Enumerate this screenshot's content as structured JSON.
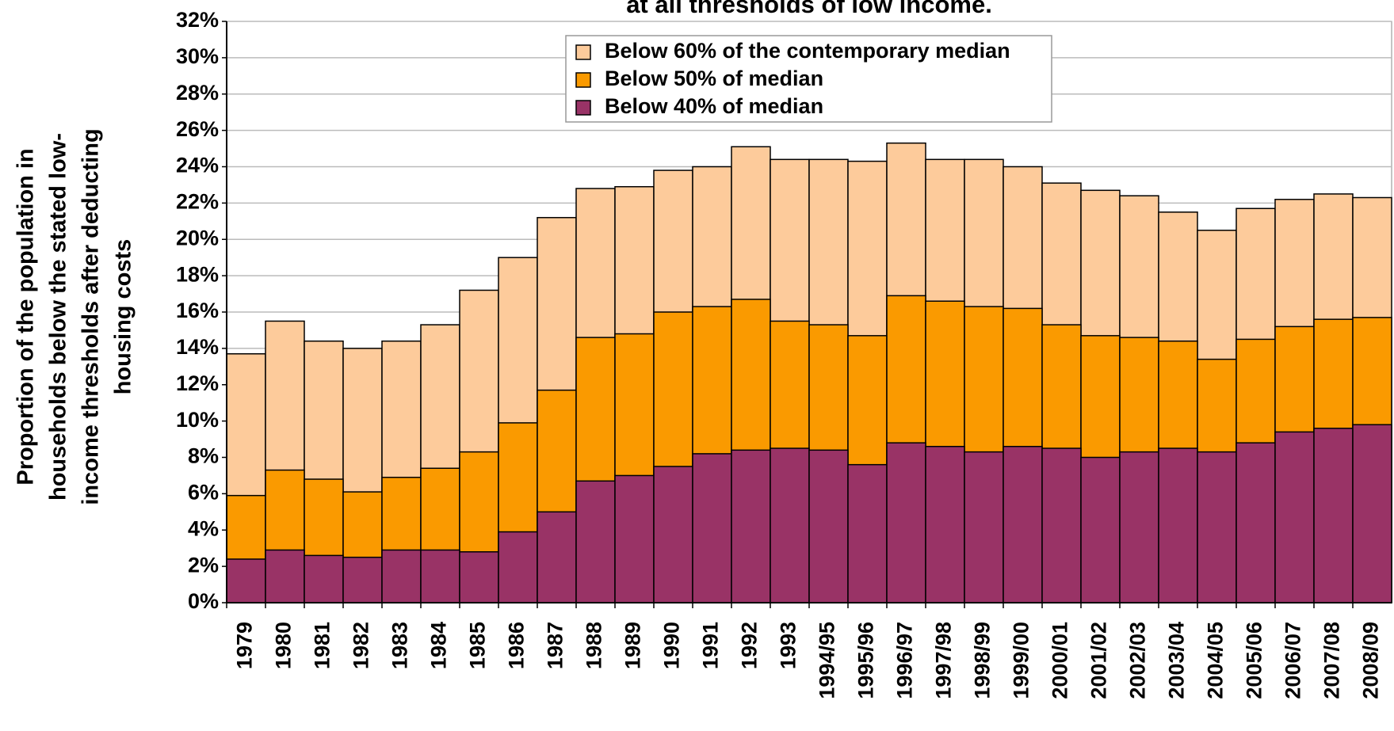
{
  "chart_data": {
    "type": "bar",
    "overlap": true,
    "title": "at all thresholds of low income.",
    "ylabel": [
      "Proportion of the population in",
      "households below the stated low-",
      "income thresholds after deducting",
      "housing costs"
    ],
    "categories": [
      "1979",
      "1980",
      "1981",
      "1982",
      "1983",
      "1984",
      "1985",
      "1986",
      "1987",
      "1988",
      "1989",
      "1990",
      "1991",
      "1992",
      "1993",
      "1994/95",
      "1995/96",
      "1996/97",
      "1997/98",
      "1998/99",
      "1999/00",
      "2000/01",
      "2001/02",
      "2002/03",
      "2003/04",
      "2004/05",
      "2005/06",
      "2006/07",
      "2007/08",
      "2008/09"
    ],
    "series": [
      {
        "name": "Below 60% of the contemporary median",
        "color": "#fdcb9b",
        "values": [
          13.7,
          15.5,
          14.4,
          14.0,
          14.4,
          15.3,
          17.2,
          19.0,
          21.2,
          22.8,
          22.9,
          23.8,
          24.0,
          25.1,
          24.4,
          24.4,
          24.3,
          25.3,
          24.4,
          24.4,
          24.0,
          23.1,
          22.7,
          22.4,
          21.5,
          20.5,
          21.7,
          22.2,
          22.5,
          22.3
        ]
      },
      {
        "name": "Below 50% of median",
        "color": "#fa9a00",
        "values": [
          5.9,
          7.3,
          6.8,
          6.1,
          6.9,
          7.4,
          8.3,
          9.9,
          11.7,
          14.6,
          14.8,
          16.0,
          16.3,
          16.7,
          15.5,
          15.3,
          14.7,
          16.9,
          16.6,
          16.3,
          16.2,
          15.3,
          14.7,
          14.6,
          14.4,
          13.4,
          14.5,
          15.2,
          15.6,
          15.7
        ]
      },
      {
        "name": "Below 40% of median",
        "color": "#993366",
        "values": [
          2.4,
          2.9,
          2.6,
          2.5,
          2.9,
          2.9,
          2.8,
          3.9,
          5.0,
          6.7,
          7.0,
          7.5,
          8.2,
          8.4,
          8.5,
          8.4,
          7.6,
          8.8,
          8.6,
          8.3,
          8.6,
          8.5,
          8.0,
          8.3,
          8.5,
          8.3,
          8.8,
          9.4,
          9.6,
          9.8
        ]
      }
    ],
    "ylim": [
      0,
      32
    ],
    "yticks": [
      {
        "value": 0,
        "label": "0%"
      },
      {
        "value": 2,
        "label": "2%"
      },
      {
        "value": 4,
        "label": "4%"
      },
      {
        "value": 6,
        "label": "6%"
      },
      {
        "value": 8,
        "label": "8%"
      },
      {
        "value": 10,
        "label": "10%"
      },
      {
        "value": 12,
        "label": "12%"
      },
      {
        "value": 14,
        "label": "14%"
      },
      {
        "value": 16,
        "label": "16%"
      },
      {
        "value": 18,
        "label": "18%"
      },
      {
        "value": 20,
        "label": "20%"
      },
      {
        "value": 22,
        "label": "22%"
      },
      {
        "value": 24,
        "label": "24%"
      },
      {
        "value": 26,
        "label": "26%"
      },
      {
        "value": 28,
        "label": "28%"
      },
      {
        "value": 30,
        "label": "30%"
      },
      {
        "value": 32,
        "label": "32%"
      }
    ],
    "grid": true,
    "legend": "top"
  }
}
